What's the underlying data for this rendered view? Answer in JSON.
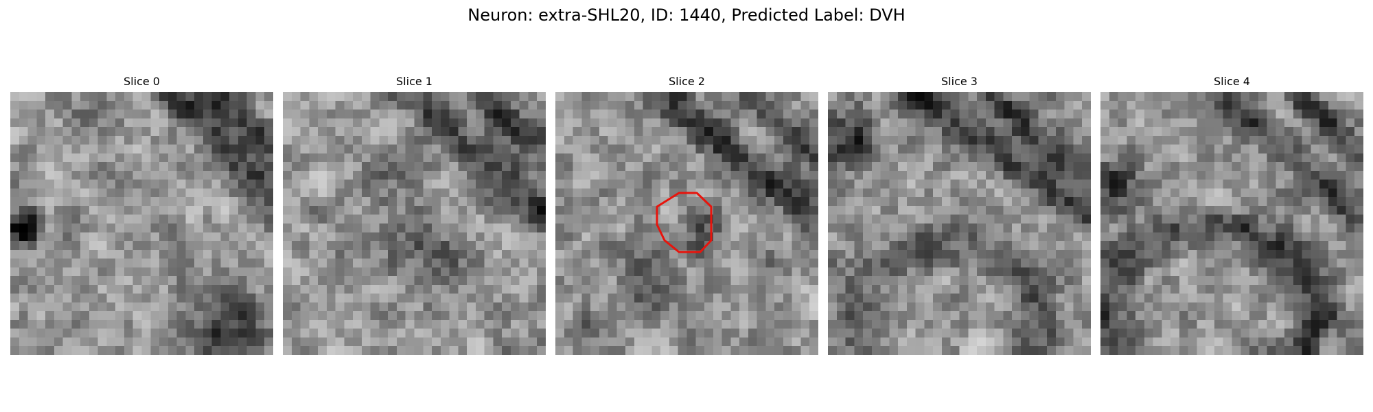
{
  "figure": {
    "title": "Neuron: extra-SHL20, ID: 1440, Predicted Label: DVH"
  },
  "panels": [
    {
      "title": "Slice 0"
    },
    {
      "title": "Slice 1"
    },
    {
      "title": "Slice 2"
    },
    {
      "title": "Slice 3"
    },
    {
      "title": "Slice 4"
    }
  ],
  "colors": {
    "background": "#ffffff",
    "roi_outline": "#e8140c",
    "colormap": "gray"
  }
}
